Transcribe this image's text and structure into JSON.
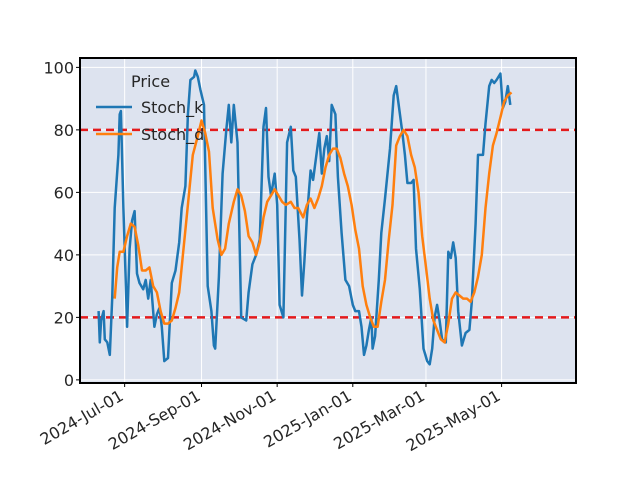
{
  "chart_data": {
    "type": "line",
    "title": "",
    "xlabel": "",
    "ylabel": "",
    "legend": {
      "title": "Price",
      "placement": "top-left"
    },
    "x_axis": {
      "type": "date",
      "range": [
        "2024-05-26",
        "2025-06-30"
      ],
      "ticks": [
        {
          "date": "2024-07-01",
          "label": "2024-Jul-01"
        },
        {
          "date": "2024-09-01",
          "label": "2024-Sep-01"
        },
        {
          "date": "2024-11-01",
          "label": "2024-Nov-01"
        },
        {
          "date": "2025-01-01",
          "label": "2025-Jan-01"
        },
        {
          "date": "2025-03-01",
          "label": "2025-Mar-01"
        },
        {
          "date": "2025-05-01",
          "label": "2025-May-01"
        }
      ]
    },
    "y_axis": {
      "range": [
        -1,
        103
      ],
      "ticks": [
        0,
        20,
        40,
        60,
        80,
        100
      ]
    },
    "grid": true,
    "reference_lines": [
      {
        "y": 80,
        "color": "#e41a1c",
        "style": "dashed"
      },
      {
        "y": 20,
        "color": "#e41a1c",
        "style": "dashed"
      }
    ],
    "colors": {
      "background": "#dde3ef",
      "grid": "#ffffff"
    },
    "series": [
      {
        "name": "Stoch_k",
        "color": "#1f77b4",
        "points": [
          [
            "2024-06-10",
            22
          ],
          [
            "2024-06-11",
            12
          ],
          [
            "2024-06-12",
            19
          ],
          [
            "2024-06-14",
            22
          ],
          [
            "2024-06-15",
            13
          ],
          [
            "2024-06-17",
            12
          ],
          [
            "2024-06-19",
            8
          ],
          [
            "2024-06-21",
            26
          ],
          [
            "2024-06-23",
            55
          ],
          [
            "2024-06-26",
            72
          ],
          [
            "2024-06-27",
            85
          ],
          [
            "2024-06-28",
            86
          ],
          [
            "2024-06-30",
            55
          ],
          [
            "2024-07-02",
            30
          ],
          [
            "2024-07-03",
            17
          ],
          [
            "2024-07-05",
            42
          ],
          [
            "2024-07-07",
            51
          ],
          [
            "2024-07-09",
            54
          ],
          [
            "2024-07-11",
            34
          ],
          [
            "2024-07-13",
            31
          ],
          [
            "2024-07-16",
            29
          ],
          [
            "2024-07-18",
            32
          ],
          [
            "2024-07-20",
            26
          ],
          [
            "2024-07-22",
            32
          ],
          [
            "2024-07-25",
            17
          ],
          [
            "2024-07-27",
            21
          ],
          [
            "2024-07-29",
            23
          ],
          [
            "2024-07-31",
            17
          ],
          [
            "2024-08-02",
            6
          ],
          [
            "2024-08-05",
            7
          ],
          [
            "2024-08-08",
            31
          ],
          [
            "2024-08-11",
            35
          ],
          [
            "2024-08-14",
            44
          ],
          [
            "2024-08-16",
            55
          ],
          [
            "2024-08-19",
            62
          ],
          [
            "2024-08-21",
            85
          ],
          [
            "2024-08-23",
            96
          ],
          [
            "2024-08-26",
            97
          ],
          [
            "2024-08-27",
            99
          ],
          [
            "2024-08-29",
            97
          ],
          [
            "2024-08-31",
            93
          ],
          [
            "2024-09-03",
            88
          ],
          [
            "2024-09-06",
            30
          ],
          [
            "2024-09-09",
            22
          ],
          [
            "2024-09-11",
            11
          ],
          [
            "2024-09-12",
            10
          ],
          [
            "2024-09-15",
            33
          ],
          [
            "2024-09-18",
            66
          ],
          [
            "2024-09-21",
            80
          ],
          [
            "2024-09-23",
            88
          ],
          [
            "2024-09-25",
            76
          ],
          [
            "2024-09-27",
            88
          ],
          [
            "2024-09-30",
            76
          ],
          [
            "2024-10-03",
            20
          ],
          [
            "2024-10-07",
            19
          ],
          [
            "2024-10-09",
            28
          ],
          [
            "2024-10-12",
            37
          ],
          [
            "2024-10-15",
            40
          ],
          [
            "2024-10-18",
            45
          ],
          [
            "2024-10-21",
            81
          ],
          [
            "2024-10-23",
            87
          ],
          [
            "2024-10-25",
            65
          ],
          [
            "2024-10-27",
            59
          ],
          [
            "2024-10-30",
            66
          ],
          [
            "2024-11-01",
            56
          ],
          [
            "2024-11-03",
            24
          ],
          [
            "2024-11-06",
            20
          ],
          [
            "2024-11-09",
            76
          ],
          [
            "2024-11-12",
            81
          ],
          [
            "2024-11-14",
            67
          ],
          [
            "2024-11-16",
            65
          ],
          [
            "2024-11-19",
            45
          ],
          [
            "2024-11-21",
            27
          ],
          [
            "2024-11-23",
            38
          ],
          [
            "2024-11-25",
            52
          ],
          [
            "2024-11-28",
            67
          ],
          [
            "2024-11-30",
            64
          ],
          [
            "2024-12-02",
            70
          ],
          [
            "2024-12-05",
            79
          ],
          [
            "2024-12-07",
            66
          ],
          [
            "2024-12-09",
            74
          ],
          [
            "2024-12-11",
            78
          ],
          [
            "2024-12-13",
            70
          ],
          [
            "2024-12-15",
            88
          ],
          [
            "2024-12-18",
            85
          ],
          [
            "2024-12-20",
            65
          ],
          [
            "2024-12-23",
            47
          ],
          [
            "2024-12-26",
            32
          ],
          [
            "2024-12-29",
            30
          ],
          [
            "2025-01-01",
            24
          ],
          [
            "2025-01-03",
            22
          ],
          [
            "2025-01-06",
            22
          ],
          [
            "2025-01-08",
            17
          ],
          [
            "2025-01-10",
            8
          ],
          [
            "2025-01-12",
            11
          ],
          [
            "2025-01-14",
            16
          ],
          [
            "2025-01-16",
            20
          ],
          [
            "2025-01-17",
            10
          ],
          [
            "2025-01-19",
            14
          ],
          [
            "2025-01-22",
            32
          ],
          [
            "2025-01-24",
            47
          ],
          [
            "2025-01-27",
            58
          ],
          [
            "2025-01-31",
            74
          ],
          [
            "2025-02-03",
            91
          ],
          [
            "2025-02-05",
            94
          ],
          [
            "2025-02-07",
            88
          ],
          [
            "2025-02-10",
            79
          ],
          [
            "2025-02-12",
            72
          ],
          [
            "2025-02-14",
            63
          ],
          [
            "2025-02-17",
            63
          ],
          [
            "2025-02-19",
            64
          ],
          [
            "2025-02-21",
            42
          ],
          [
            "2025-02-24",
            29
          ],
          [
            "2025-02-27",
            10
          ],
          [
            "2025-03-02",
            6
          ],
          [
            "2025-03-04",
            5
          ],
          [
            "2025-03-06",
            10
          ],
          [
            "2025-03-08",
            20
          ],
          [
            "2025-03-10",
            24
          ],
          [
            "2025-03-12",
            19
          ],
          [
            "2025-03-14",
            13
          ],
          [
            "2025-03-17",
            12
          ],
          [
            "2025-03-19",
            41
          ],
          [
            "2025-03-21",
            39
          ],
          [
            "2025-03-23",
            44
          ],
          [
            "2025-03-25",
            39
          ],
          [
            "2025-03-27",
            22
          ],
          [
            "2025-03-30",
            11
          ],
          [
            "2025-04-02",
            15
          ],
          [
            "2025-04-05",
            16
          ],
          [
            "2025-04-07",
            25
          ],
          [
            "2025-04-10",
            50
          ],
          [
            "2025-04-12",
            72
          ],
          [
            "2025-04-14",
            72
          ],
          [
            "2025-04-16",
            72
          ],
          [
            "2025-04-18",
            82
          ],
          [
            "2025-04-21",
            94
          ],
          [
            "2025-04-23",
            96
          ],
          [
            "2025-04-25",
            95
          ],
          [
            "2025-04-27",
            96
          ],
          [
            "2025-04-30",
            98
          ],
          [
            "2025-05-02",
            87
          ],
          [
            "2025-05-04",
            89
          ],
          [
            "2025-05-06",
            94
          ],
          [
            "2025-05-08",
            88
          ]
        ]
      },
      {
        "name": "Stoch_d",
        "color": "#ff7f0e",
        "points": [
          [
            "2024-06-23",
            26
          ],
          [
            "2024-06-25",
            36
          ],
          [
            "2024-06-27",
            41
          ],
          [
            "2024-06-30",
            41
          ],
          [
            "2024-07-03",
            46
          ],
          [
            "2024-07-06",
            50
          ],
          [
            "2024-07-09",
            49
          ],
          [
            "2024-07-12",
            43
          ],
          [
            "2024-07-15",
            35
          ],
          [
            "2024-07-18",
            35
          ],
          [
            "2024-07-21",
            36
          ],
          [
            "2024-07-24",
            30
          ],
          [
            "2024-07-27",
            28
          ],
          [
            "2024-07-30",
            22
          ],
          [
            "2024-08-02",
            18
          ],
          [
            "2024-08-05",
            18
          ],
          [
            "2024-08-08",
            19
          ],
          [
            "2024-08-11",
            23
          ],
          [
            "2024-08-14",
            28
          ],
          [
            "2024-08-17",
            40
          ],
          [
            "2024-08-21",
            56
          ],
          [
            "2024-08-25",
            72
          ],
          [
            "2024-08-29",
            78
          ],
          [
            "2024-09-01",
            83
          ],
          [
            "2024-09-04",
            79
          ],
          [
            "2024-09-07",
            73
          ],
          [
            "2024-09-10",
            55
          ],
          [
            "2024-09-14",
            45
          ],
          [
            "2024-09-17",
            40
          ],
          [
            "2024-09-20",
            42
          ],
          [
            "2024-09-23",
            50
          ],
          [
            "2024-09-27",
            57
          ],
          [
            "2024-09-30",
            61
          ],
          [
            "2024-10-03",
            59
          ],
          [
            "2024-10-06",
            54
          ],
          [
            "2024-10-09",
            46
          ],
          [
            "2024-10-12",
            44
          ],
          [
            "2024-10-15",
            40
          ],
          [
            "2024-10-18",
            44
          ],
          [
            "2024-10-21",
            52
          ],
          [
            "2024-10-24",
            57
          ],
          [
            "2024-10-27",
            59
          ],
          [
            "2024-10-30",
            61
          ],
          [
            "2024-11-02",
            59
          ],
          [
            "2024-11-05",
            57
          ],
          [
            "2024-11-08",
            56
          ],
          [
            "2024-11-12",
            57
          ],
          [
            "2024-11-15",
            55
          ],
          [
            "2024-11-18",
            55
          ],
          [
            "2024-11-22",
            52
          ],
          [
            "2024-11-25",
            56
          ],
          [
            "2024-11-28",
            58
          ],
          [
            "2024-12-01",
            55
          ],
          [
            "2024-12-04",
            58
          ],
          [
            "2024-12-07",
            62
          ],
          [
            "2024-12-10",
            68
          ],
          [
            "2024-12-13",
            72
          ],
          [
            "2024-12-16",
            74
          ],
          [
            "2024-12-19",
            74
          ],
          [
            "2024-12-22",
            71
          ],
          [
            "2024-12-25",
            66
          ],
          [
            "2024-12-28",
            62
          ],
          [
            "2024-12-31",
            56
          ],
          [
            "2025-01-03",
            48
          ],
          [
            "2025-01-06",
            42
          ],
          [
            "2025-01-09",
            30
          ],
          [
            "2025-01-12",
            24
          ],
          [
            "2025-01-15",
            20
          ],
          [
            "2025-01-18",
            17
          ],
          [
            "2025-01-21",
            17
          ],
          [
            "2025-01-24",
            25
          ],
          [
            "2025-01-27",
            32
          ],
          [
            "2025-01-30",
            45
          ],
          [
            "2025-02-02",
            56
          ],
          [
            "2025-02-05",
            75
          ],
          [
            "2025-02-08",
            78
          ],
          [
            "2025-02-11",
            80
          ],
          [
            "2025-02-14",
            78
          ],
          [
            "2025-02-17",
            72
          ],
          [
            "2025-02-20",
            68
          ],
          [
            "2025-02-23",
            60
          ],
          [
            "2025-02-26",
            46
          ],
          [
            "2025-03-01",
            36
          ],
          [
            "2025-03-04",
            26
          ],
          [
            "2025-03-07",
            19
          ],
          [
            "2025-03-10",
            16
          ],
          [
            "2025-03-13",
            13
          ],
          [
            "2025-03-16",
            12
          ],
          [
            "2025-03-19",
            18
          ],
          [
            "2025-03-22",
            26
          ],
          [
            "2025-03-25",
            28
          ],
          [
            "2025-03-28",
            27
          ],
          [
            "2025-03-31",
            26
          ],
          [
            "2025-04-03",
            26
          ],
          [
            "2025-04-06",
            25
          ],
          [
            "2025-04-09",
            28
          ],
          [
            "2025-04-12",
            33
          ],
          [
            "2025-04-15",
            40
          ],
          [
            "2025-04-18",
            55
          ],
          [
            "2025-04-21",
            66
          ],
          [
            "2025-04-24",
            75
          ],
          [
            "2025-04-27",
            79
          ],
          [
            "2025-04-30",
            84
          ],
          [
            "2025-05-03",
            89
          ],
          [
            "2025-05-06",
            91
          ],
          [
            "2025-05-09",
            92
          ]
        ]
      }
    ]
  }
}
